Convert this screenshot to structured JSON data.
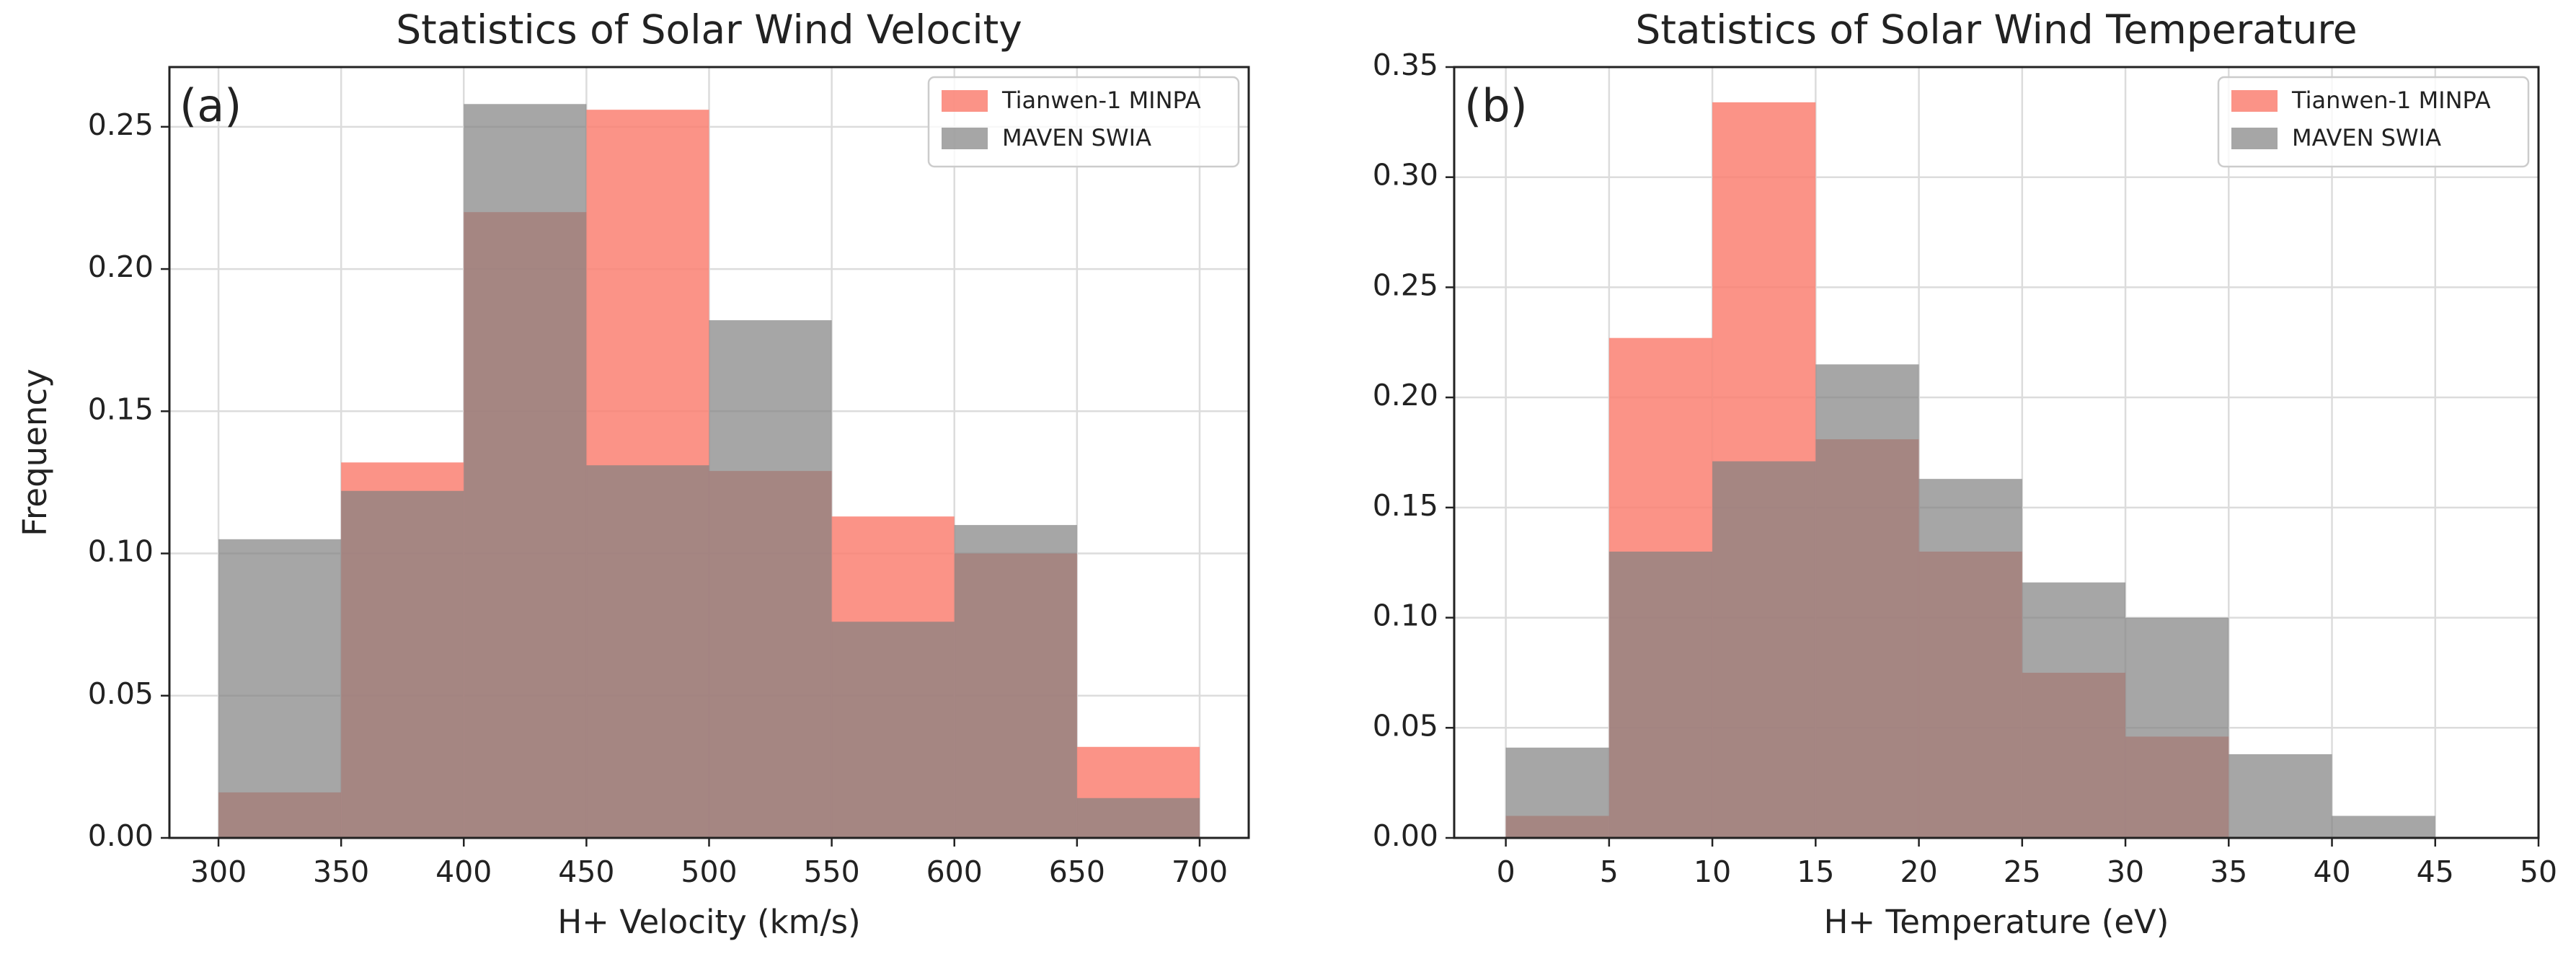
{
  "chart_data": [
    {
      "type": "histogram",
      "title": "Statistics of Solar Wind Velocity",
      "annotation": "(a)",
      "xlabel": "H+ Velocity (km/s)",
      "ylabel": "Frequency",
      "bins": [
        300,
        350,
        400,
        450,
        500,
        550,
        600,
        650,
        700
      ],
      "series": [
        {
          "name": "Tianwen-1 MINPA",
          "color": "#fa8072",
          "alpha": 0.85,
          "values": [
            0.016,
            0.132,
            0.22,
            0.256,
            0.129,
            0.113,
            0.1,
            0.032
          ]
        },
        {
          "name": "MAVEN SWIA",
          "color": "#808080",
          "alpha": 0.7,
          "values": [
            0.105,
            0.122,
            0.258,
            0.131,
            0.182,
            0.076,
            0.11,
            0.014
          ]
        }
      ],
      "xlim": [
        280,
        720
      ],
      "ylim": [
        0,
        0.271
      ],
      "xticks": [
        300,
        350,
        400,
        450,
        500,
        550,
        600,
        650,
        700
      ],
      "yticks": [
        {
          "value": 0,
          "label": "0.00"
        },
        {
          "value": 0.05,
          "label": "0.05"
        },
        {
          "value": 0.1,
          "label": "0.10"
        },
        {
          "value": 0.15,
          "label": "0.15"
        },
        {
          "value": 0.2,
          "label": "0.20"
        },
        {
          "value": 0.25,
          "label": "0.25"
        }
      ],
      "grid": true,
      "legend": "upper right"
    },
    {
      "type": "histogram",
      "title": "Statistics of Solar Wind Temperature",
      "annotation": "(b)",
      "xlabel": "H+ Temperature (eV)",
      "bins": [
        0,
        5,
        10,
        15,
        20,
        25,
        30,
        35,
        40,
        45
      ],
      "series": [
        {
          "name": "Tianwen-1 MINPA",
          "color": "#fa8072",
          "alpha": 0.85,
          "values": [
            0.01,
            0.227,
            0.334,
            0.181,
            0.13,
            0.075,
            0.046,
            0,
            0
          ]
        },
        {
          "name": "MAVEN SWIA",
          "color": "#808080",
          "alpha": 0.7,
          "values": [
            0.041,
            0.13,
            0.171,
            0.215,
            0.163,
            0.116,
            0.1,
            0.038,
            0.01
          ]
        }
      ],
      "xlim": [
        -2.5,
        50
      ],
      "ylim": [
        0,
        0.35
      ],
      "xticks": [
        0,
        5,
        10,
        15,
        20,
        25,
        30,
        35,
        40,
        45,
        50
      ],
      "yticks": [
        {
          "value": 0,
          "label": "0.00"
        },
        {
          "value": 0.05,
          "label": "0.05"
        },
        {
          "value": 0.1,
          "label": "0.10"
        },
        {
          "value": 0.15,
          "label": "0.15"
        },
        {
          "value": 0.2,
          "label": "0.20"
        },
        {
          "value": 0.25,
          "label": "0.25"
        },
        {
          "value": 0.3,
          "label": "0.30"
        },
        {
          "value": 0.35,
          "label": "0.35"
        }
      ],
      "grid": true,
      "legend": "upper right"
    }
  ]
}
